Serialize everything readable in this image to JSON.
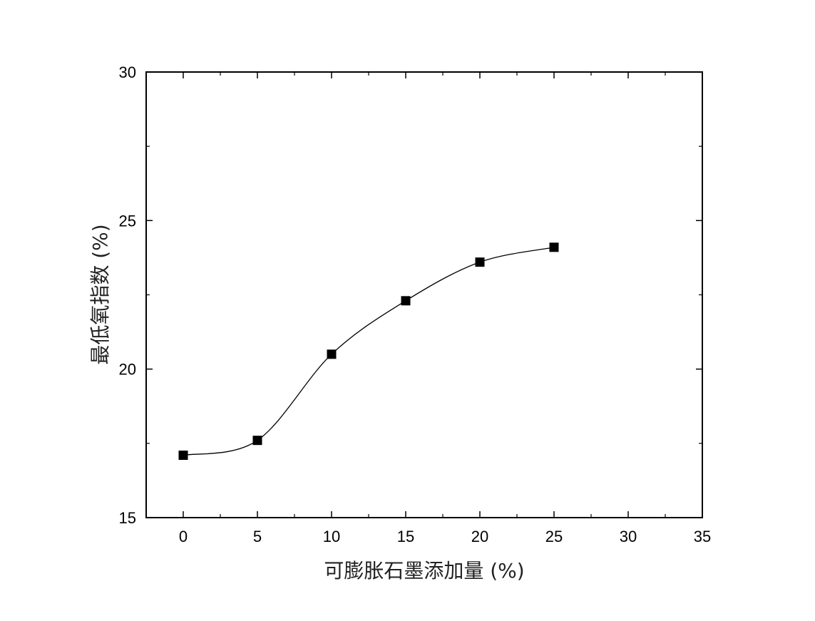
{
  "chart_data": {
    "type": "scatter",
    "title": "",
    "xlabel": "可膨胀石墨添加量 (%)",
    "ylabel": "最低氧指数 (%)",
    "xlim": [
      -2.5,
      35
    ],
    "ylim": [
      15,
      30
    ],
    "x_ticks": [
      0,
      5,
      10,
      15,
      20,
      25,
      30,
      35
    ],
    "y_ticks": [
      15,
      20,
      25,
      30
    ],
    "grid": false,
    "legend": "none",
    "marker": "square",
    "smooth_line": true,
    "colors": {
      "marker": "#000000",
      "line": "#000000",
      "axis": "#000000"
    },
    "series": [
      {
        "x": [
          0,
          5,
          10,
          15,
          20,
          25
        ],
        "y": [
          17.1,
          17.6,
          20.5,
          22.3,
          23.6,
          24.1
        ]
      }
    ]
  }
}
